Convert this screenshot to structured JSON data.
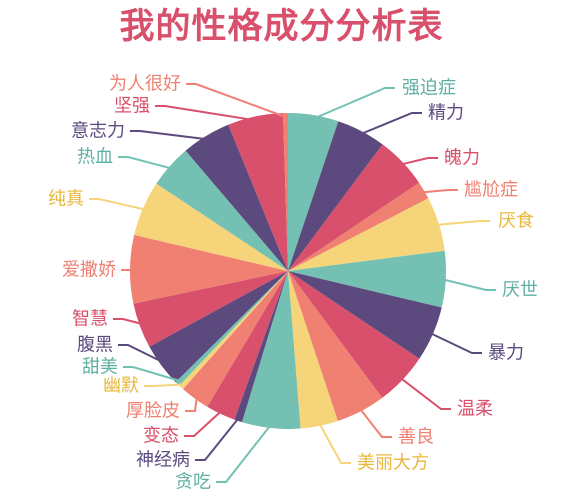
{
  "chart_data": {
    "type": "pie",
    "title": "我的性格成分分析表",
    "title_color": "#d8506b",
    "start": "top",
    "direction": "clockwise",
    "slices": [
      {
        "label": "强迫症",
        "value": 5.1,
        "color": "#74c1b4"
      },
      {
        "label": "精力",
        "value": 5.0,
        "color": "#5c4a7f"
      },
      {
        "label": "魄力",
        "value": 5.3,
        "color": "#d8506b"
      },
      {
        "label": "尴尬症",
        "value": 1.8,
        "color": "#ef8072"
      },
      {
        "label": "厌食",
        "value": 5.5,
        "color": "#f6d47a"
      },
      {
        "label": "厌世",
        "value": 5.7,
        "color": "#74c1b4"
      },
      {
        "label": "暴力",
        "value": 5.6,
        "color": "#5c4a7f"
      },
      {
        "label": "温柔",
        "value": 5.4,
        "color": "#d8506b"
      },
      {
        "label": "善良",
        "value": 5.0,
        "color": "#ef8072"
      },
      {
        "label": "美丽大方",
        "value": 3.8,
        "color": "#f6d47a"
      },
      {
        "label": "贪吃",
        "value": 5.9,
        "color": "#74c1b4"
      },
      {
        "label": "神经病",
        "value": 0.8,
        "color": "#5c4a7f"
      },
      {
        "label": "变态",
        "value": 3.0,
        "color": "#d8506b"
      },
      {
        "label": "厚脸皮",
        "value": 3.0,
        "color": "#ef8072"
      },
      {
        "label": "幽默",
        "value": 0.5,
        "color": "#f6d47a"
      },
      {
        "label": "甜美",
        "value": 0.5,
        "color": "#74c1b4"
      },
      {
        "label": "腹黑",
        "value": 4.4,
        "color": "#5c4a7f"
      },
      {
        "label": "智慧",
        "value": 4.6,
        "color": "#d8506b"
      },
      {
        "label": "爱撒娇",
        "value": 6.9,
        "color": "#ef8072"
      },
      {
        "label": "纯真",
        "value": 5.6,
        "color": "#f6d47a"
      },
      {
        "label": "热血",
        "value": 4.4,
        "color": "#74c1b4"
      },
      {
        "label": "意志力",
        "value": 5.0,
        "color": "#5c4a7f"
      },
      {
        "label": "坚强",
        "value": 5.6,
        "color": "#d8506b"
      },
      {
        "label": "为人很好",
        "value": 0.5,
        "color": "#ef8072"
      }
    ],
    "legend": "callout-labels"
  }
}
